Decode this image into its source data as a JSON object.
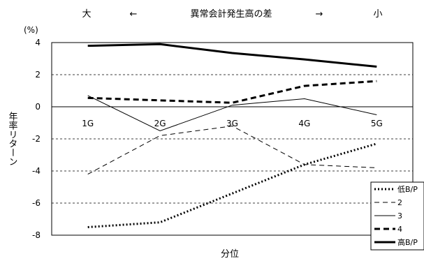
{
  "chart_data": {
    "type": "line",
    "top_annotation": {
      "left": "大",
      "left_arrow": "←",
      "center": "異常会計発生高の差",
      "right_arrow": "→",
      "right": "小"
    },
    "y_unit": "(%)",
    "ylabel": "年率リターン",
    "xlabel": "分位",
    "categories": [
      "1G",
      "2G",
      "3G",
      "4G",
      "5G"
    ],
    "y_ticks": [
      4,
      2,
      0,
      -2,
      -4,
      -6,
      -8
    ],
    "ylim": [
      -8,
      4
    ],
    "grid": "dashed horizontal lines at 2, -2, -4, -6",
    "legend_position": "bottom-right",
    "series": [
      {
        "name": "低B/P",
        "style": "dotted-thick",
        "values": [
          -7.5,
          -7.2,
          -5.4,
          -3.6,
          -2.3
        ]
      },
      {
        "name": "2",
        "style": "dashed-thin",
        "values": [
          -4.2,
          -1.8,
          -1.2,
          -3.6,
          -3.8
        ]
      },
      {
        "name": "3",
        "style": "solid-thin",
        "values": [
          0.7,
          -1.5,
          0.1,
          0.5,
          -0.5
        ]
      },
      {
        "name": "4",
        "style": "dashed-thick",
        "values": [
          0.55,
          0.4,
          0.25,
          1.3,
          1.6
        ]
      },
      {
        "name": "高B/P",
        "style": "solid-thick",
        "values": [
          3.8,
          3.9,
          3.35,
          2.95,
          2.5
        ]
      }
    ]
  }
}
